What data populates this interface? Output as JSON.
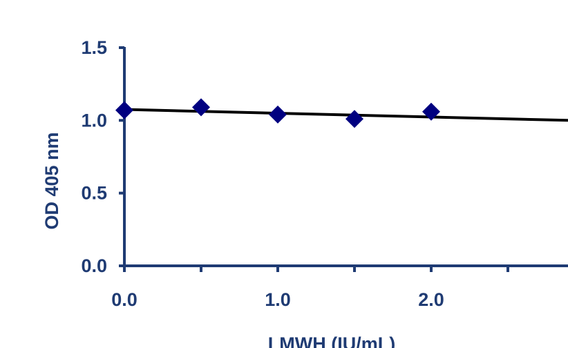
{
  "chart_data": {
    "type": "scatter",
    "xlabel": "LMWH (IU/mL)",
    "ylabel": "OD 405 nm",
    "xlim": [
      0,
      2.9
    ],
    "ylim": [
      0,
      1.5
    ],
    "x_ticks": [
      "0.0",
      "1.0",
      "2.0"
    ],
    "y_ticks": [
      "0.0",
      "0.5",
      "1.0",
      "1.5"
    ],
    "x_tick_values": [
      0,
      1,
      2
    ],
    "y_tick_values": [
      0,
      0.5,
      1,
      1.5
    ],
    "x_minor_tick_values": [
      0.5,
      1.5,
      2.5
    ],
    "series": [
      {
        "marker": "diamond",
        "color": "#000080",
        "x": [
          0,
          0.5,
          1.0,
          1.5,
          2.0
        ],
        "y": [
          1.07,
          1.09,
          1.04,
          1.01,
          1.06
        ]
      }
    ],
    "trendline": {
      "color": "#000000",
      "x": [
        0,
        2.9
      ],
      "y": [
        1.075,
        1.0
      ]
    },
    "axis_color": "#1f3b73",
    "grid": false,
    "legend": "none"
  }
}
